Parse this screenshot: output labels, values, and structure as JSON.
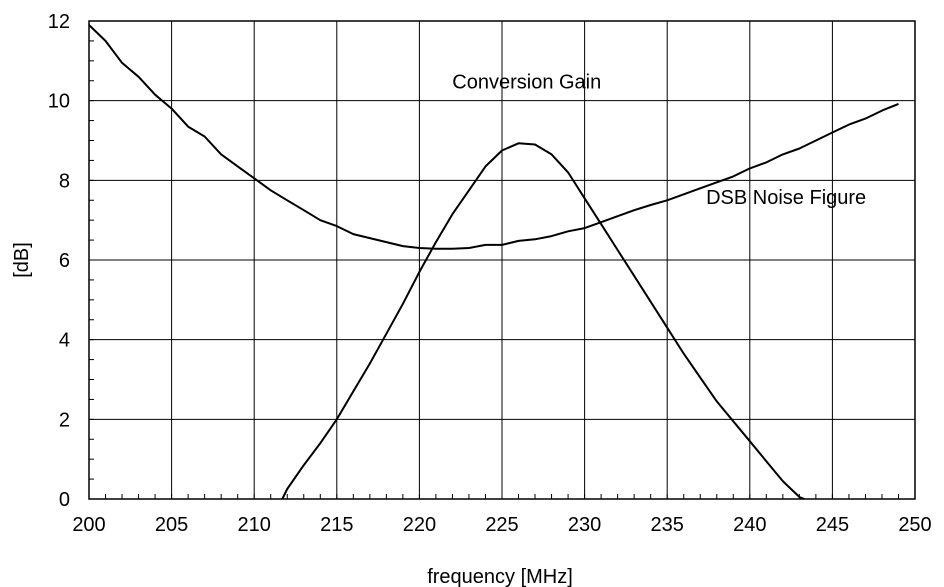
{
  "chart_data": {
    "type": "line",
    "title": "",
    "xlabel": "frequency [MHz]",
    "ylabel": "[dB]",
    "xlim": [
      200,
      250
    ],
    "ylim": [
      0,
      12
    ],
    "x_ticks": [
      200,
      205,
      210,
      215,
      220,
      225,
      230,
      235,
      240,
      245,
      250
    ],
    "y_ticks": [
      0,
      2,
      4,
      6,
      8,
      10,
      12
    ],
    "grid": true,
    "line_color": "#000000",
    "annotations": [
      {
        "text": "Conversion Gain",
        "x": 226.5,
        "y": 10.3
      },
      {
        "text": "DSB Noise Figure",
        "x": 242.2,
        "y": 7.4
      }
    ],
    "series": [
      {
        "x": [
          200,
          201,
          202,
          203,
          204,
          205,
          206,
          207,
          208,
          209,
          210,
          211,
          212,
          213,
          214,
          215,
          216,
          217,
          218,
          219,
          220,
          221,
          222,
          223,
          224,
          225,
          226,
          227,
          228,
          229,
          230,
          231,
          232,
          233,
          234,
          235,
          236,
          237,
          238,
          239,
          240,
          241,
          242,
          243,
          244,
          245,
          246,
          247,
          248,
          249
        ],
        "values": [
          11.9,
          11.5,
          10.95,
          10.6,
          10.15,
          9.8,
          9.35,
          9.1,
          8.65,
          8.35,
          8.05,
          7.75,
          7.5,
          7.25,
          7.0,
          6.85,
          6.65,
          6.55,
          6.45,
          6.35,
          6.3,
          6.28,
          6.28,
          6.3,
          6.38,
          6.38,
          6.48,
          6.52,
          6.6,
          6.72,
          6.8,
          6.95,
          7.1,
          7.25,
          7.38,
          7.5,
          7.65,
          7.8,
          7.95,
          8.1,
          8.3,
          8.45,
          8.65,
          8.8,
          9.0,
          9.2,
          9.4,
          9.55,
          9.75,
          9.92
        ]
      },
      {
        "x": [
          211.7,
          212,
          213,
          214,
          215,
          216,
          217,
          218,
          219,
          220,
          221,
          222,
          223,
          224,
          225,
          226,
          227,
          228,
          229,
          230,
          231,
          232,
          233,
          234,
          235,
          236,
          237,
          238,
          239,
          240,
          241,
          242,
          243,
          243.3
        ],
        "values": [
          0,
          0.25,
          0.85,
          1.4,
          2.0,
          2.7,
          3.4,
          4.15,
          4.9,
          5.7,
          6.45,
          7.15,
          7.75,
          8.35,
          8.75,
          8.93,
          8.9,
          8.65,
          8.2,
          7.55,
          6.9,
          6.25,
          5.6,
          4.95,
          4.3,
          3.65,
          3.05,
          2.45,
          1.95,
          1.45,
          0.95,
          0.45,
          0.05,
          0
        ]
      }
    ]
  }
}
